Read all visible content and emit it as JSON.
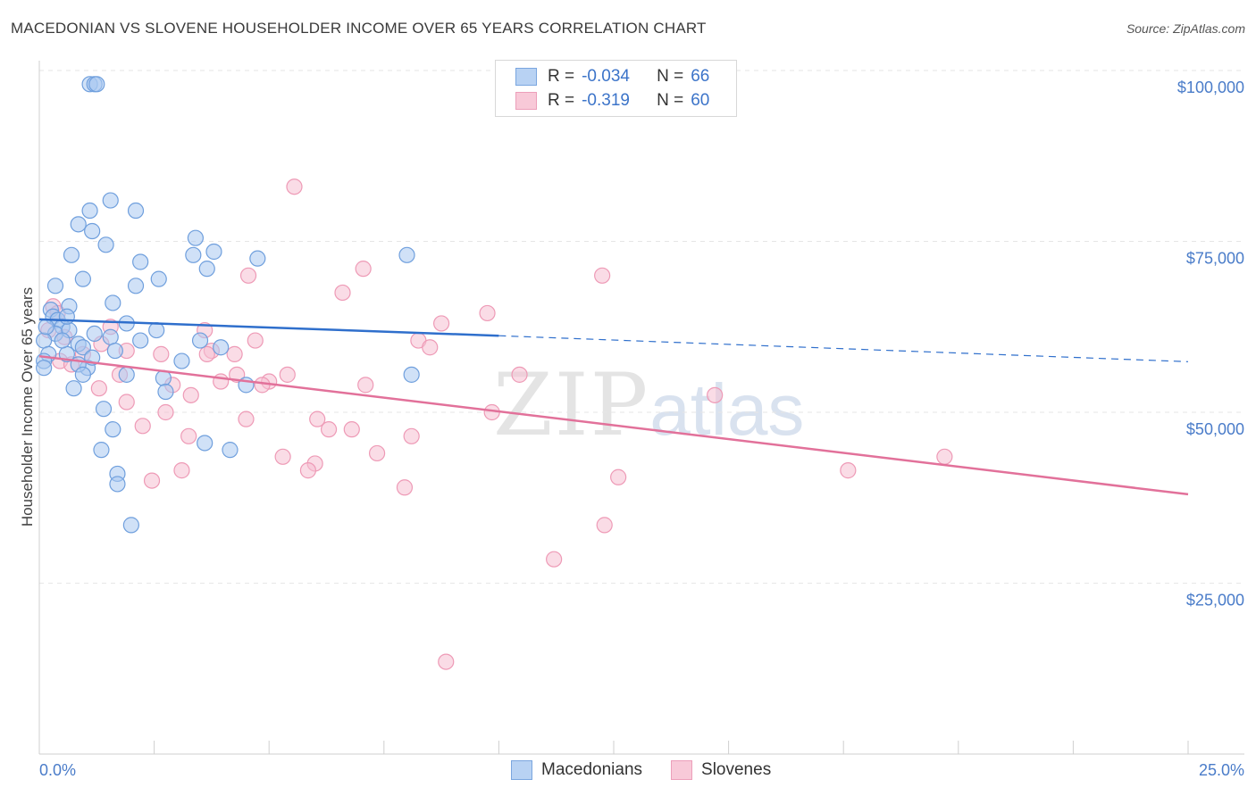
{
  "title": "MACEDONIAN VS SLOVENE HOUSEHOLDER INCOME OVER 65 YEARS CORRELATION CHART",
  "source": "Source: ZipAtlas.com",
  "watermark": {
    "zip": "ZIP",
    "atlas": "atlas"
  },
  "legend": {
    "rows": [
      {
        "r_label": "R = ",
        "r_value": "-0.034",
        "n_label": "N = ",
        "n_value": "66"
      },
      {
        "r_label": "R = ",
        "r_value": "-0.319",
        "n_label": "N = ",
        "n_value": "60"
      }
    ]
  },
  "bottom_legend": [
    "Macedonians",
    "Slovenes"
  ],
  "colors": {
    "macedonian_fill": "#a9c8f0",
    "macedonian_stroke": "#6f9fdd",
    "macedonian_line": "#2f6fcc",
    "slovene_fill": "#f6bfd1",
    "slovene_stroke": "#ee9ab6",
    "slovene_line": "#e2719a",
    "tick_text": "#4a7cc9"
  },
  "chart_data": {
    "type": "scatter",
    "title": "MACEDONIAN VS SLOVENE HOUSEHOLDER INCOME OVER 65 YEARS CORRELATION CHART",
    "xlabel": "",
    "ylabel": "Householder Income Over 65 years",
    "xlim": [
      0,
      25
    ],
    "ylim": [
      0,
      105000
    ],
    "x_tick_labels": [
      "0.0%",
      "25.0%"
    ],
    "y_ticks": [
      25000,
      50000,
      75000,
      100000
    ],
    "y_tick_labels": [
      "$25,000",
      "$50,000",
      "$75,000",
      "$100,000"
    ],
    "grid": "horizontal dashed",
    "legend_position": "top-center",
    "series": [
      {
        "name": "Macedonians",
        "r": -0.034,
        "n": 66,
        "trend": {
          "x": [
            0,
            10
          ],
          "y": [
            63600,
            61200
          ],
          "dashed_to": [
            25,
            57400
          ]
        },
        "points": [
          [
            1.1,
            98000
          ],
          [
            1.2,
            98000
          ],
          [
            1.25,
            98000
          ],
          [
            1.55,
            81000
          ],
          [
            2.1,
            79500
          ],
          [
            1.1,
            79500
          ],
          [
            0.85,
            77500
          ],
          [
            1.15,
            76500
          ],
          [
            1.45,
            74500
          ],
          [
            3.4,
            75500
          ],
          [
            3.8,
            73500
          ],
          [
            3.35,
            73000
          ],
          [
            0.7,
            73000
          ],
          [
            4.75,
            72500
          ],
          [
            2.2,
            72000
          ],
          [
            3.65,
            71000
          ],
          [
            0.95,
            69500
          ],
          [
            2.6,
            69500
          ],
          [
            0.35,
            68500
          ],
          [
            2.1,
            68500
          ],
          [
            8.0,
            73000
          ],
          [
            0.65,
            65500
          ],
          [
            1.6,
            66000
          ],
          [
            0.25,
            65000
          ],
          [
            0.3,
            64000
          ],
          [
            0.4,
            63500
          ],
          [
            0.5,
            62500
          ],
          [
            1.9,
            63000
          ],
          [
            0.35,
            61500
          ],
          [
            0.65,
            62000
          ],
          [
            1.2,
            61500
          ],
          [
            2.55,
            62000
          ],
          [
            1.55,
            61000
          ],
          [
            0.85,
            60000
          ],
          [
            0.95,
            59500
          ],
          [
            0.1,
            60500
          ],
          [
            2.2,
            60500
          ],
          [
            3.5,
            60500
          ],
          [
            0.6,
            58500
          ],
          [
            1.65,
            59000
          ],
          [
            0.2,
            58500
          ],
          [
            0.1,
            57500
          ],
          [
            3.95,
            59500
          ],
          [
            1.05,
            56500
          ],
          [
            0.85,
            57000
          ],
          [
            1.15,
            58000
          ],
          [
            3.1,
            57500
          ],
          [
            0.1,
            56500
          ],
          [
            1.9,
            55500
          ],
          [
            0.95,
            55500
          ],
          [
            2.7,
            55000
          ],
          [
            8.1,
            55500
          ],
          [
            4.5,
            54000
          ],
          [
            0.75,
            53500
          ],
          [
            2.75,
            53000
          ],
          [
            1.4,
            50500
          ],
          [
            1.6,
            47500
          ],
          [
            1.35,
            44500
          ],
          [
            3.6,
            45500
          ],
          [
            4.15,
            44500
          ],
          [
            1.7,
            41000
          ],
          [
            1.7,
            39500
          ],
          [
            2.0,
            33500
          ],
          [
            0.6,
            64000
          ],
          [
            0.15,
            62500
          ],
          [
            0.5,
            60500
          ]
        ]
      },
      {
        "name": "Slovenes",
        "r": -0.319,
        "n": 60,
        "trend": {
          "x": [
            0,
            25
          ],
          "y": [
            58200,
            38000
          ]
        },
        "points": [
          [
            5.55,
            83000
          ],
          [
            7.05,
            71000
          ],
          [
            4.55,
            70000
          ],
          [
            12.25,
            70000
          ],
          [
            6.6,
            67500
          ],
          [
            0.3,
            65500
          ],
          [
            0.4,
            64500
          ],
          [
            9.75,
            64500
          ],
          [
            8.75,
            63000
          ],
          [
            1.55,
            62500
          ],
          [
            3.6,
            62000
          ],
          [
            0.55,
            61000
          ],
          [
            4.7,
            60500
          ],
          [
            8.25,
            60500
          ],
          [
            1.35,
            60000
          ],
          [
            8.5,
            59500
          ],
          [
            3.75,
            59000
          ],
          [
            3.65,
            58500
          ],
          [
            4.25,
            58500
          ],
          [
            0.95,
            58500
          ],
          [
            1.9,
            59000
          ],
          [
            2.65,
            58500
          ],
          [
            0.45,
            57500
          ],
          [
            0.7,
            57000
          ],
          [
            4.3,
            55500
          ],
          [
            5.4,
            55500
          ],
          [
            1.75,
            55500
          ],
          [
            3.95,
            54500
          ],
          [
            5.0,
            54500
          ],
          [
            2.9,
            54000
          ],
          [
            4.85,
            54000
          ],
          [
            1.3,
            53500
          ],
          [
            7.1,
            54000
          ],
          [
            10.45,
            55500
          ],
          [
            3.3,
            52500
          ],
          [
            1.9,
            51500
          ],
          [
            2.75,
            50000
          ],
          [
            6.05,
            49000
          ],
          [
            4.5,
            49000
          ],
          [
            9.85,
            50000
          ],
          [
            14.7,
            52500
          ],
          [
            6.3,
            47500
          ],
          [
            6.8,
            47500
          ],
          [
            3.25,
            46500
          ],
          [
            8.1,
            46500
          ],
          [
            2.25,
            48000
          ],
          [
            5.3,
            43500
          ],
          [
            7.35,
            44000
          ],
          [
            19.7,
            43500
          ],
          [
            6.0,
            42500
          ],
          [
            5.85,
            41500
          ],
          [
            3.1,
            41500
          ],
          [
            2.45,
            40000
          ],
          [
            12.6,
            40500
          ],
          [
            7.95,
            39000
          ],
          [
            17.6,
            41500
          ],
          [
            12.3,
            33500
          ],
          [
            11.2,
            28500
          ],
          [
            8.85,
            13500
          ],
          [
            0.2,
            62000
          ]
        ]
      }
    ]
  }
}
